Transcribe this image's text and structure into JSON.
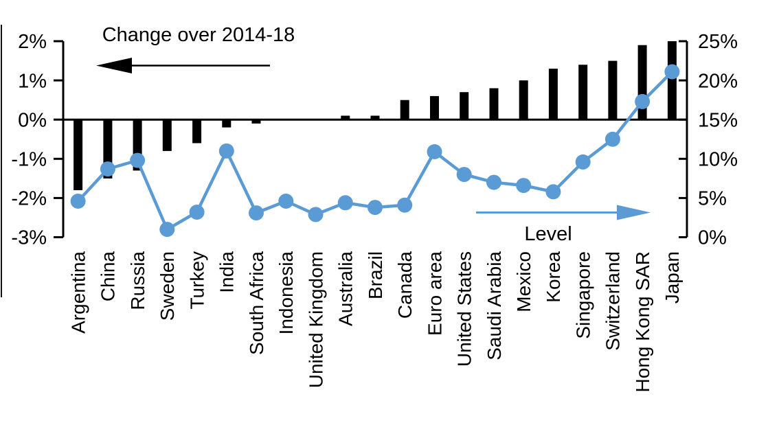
{
  "chart_data": {
    "type": "combo",
    "description": "Bar and line combo chart comparing change over 2014-18 (bars, left axis) with level (line with markers, right axis) across economies",
    "categories": [
      "Argentina",
      "China",
      "Russia",
      "Sweden",
      "Turkey",
      "India",
      "South Africa",
      "Indonesia",
      "United Kingdom",
      "Australia",
      "Brazil",
      "Canada",
      "Euro area",
      "United States",
      "Saudi Arabia",
      "Mexico",
      "Korea",
      "Singapore",
      "Switzerland",
      "Hong Kong SAR",
      "Japan"
    ],
    "series": [
      {
        "name": "Change over 2014-18",
        "type": "bar",
        "axis": "left",
        "color": "#000000",
        "values": [
          -1.8,
          -1.5,
          -1.3,
          -0.8,
          -0.6,
          -0.2,
          -0.1,
          0.0,
          0.0,
          0.1,
          0.1,
          0.5,
          0.6,
          0.7,
          0.8,
          1.0,
          1.3,
          1.4,
          1.5,
          1.9,
          2.0
        ]
      },
      {
        "name": "Level",
        "type": "line",
        "axis": "right",
        "color": "#5B9BD5",
        "values": [
          4.6,
          8.7,
          9.8,
          1.0,
          3.2,
          11.0,
          3.1,
          4.6,
          2.9,
          4.4,
          3.8,
          4.1,
          10.9,
          8.0,
          7.0,
          6.6,
          5.8,
          9.6,
          12.5,
          17.3,
          21.1
        ]
      }
    ],
    "left_axis": {
      "min": -3,
      "max": 2,
      "tick_step": 1,
      "tick_labels": [
        "2%",
        "1%",
        "0%",
        "-1%",
        "-2%",
        "-3%"
      ],
      "unit": "%"
    },
    "right_axis": {
      "min": 0,
      "max": 25,
      "tick_step": 5,
      "tick_labels": [
        "25%",
        "20%",
        "15%",
        "10%",
        "5%",
        "0%"
      ],
      "unit": "%"
    },
    "annotations": {
      "change_label": "Change over 2014-18",
      "change_arrow_direction": "left",
      "level_label": "Level",
      "level_arrow_direction": "right"
    },
    "grid": false,
    "legend_position": "none",
    "colors": {
      "bar": "#000000",
      "line": "#5B9BD5",
      "text": "#000000",
      "background": "#FFFFFF"
    }
  }
}
